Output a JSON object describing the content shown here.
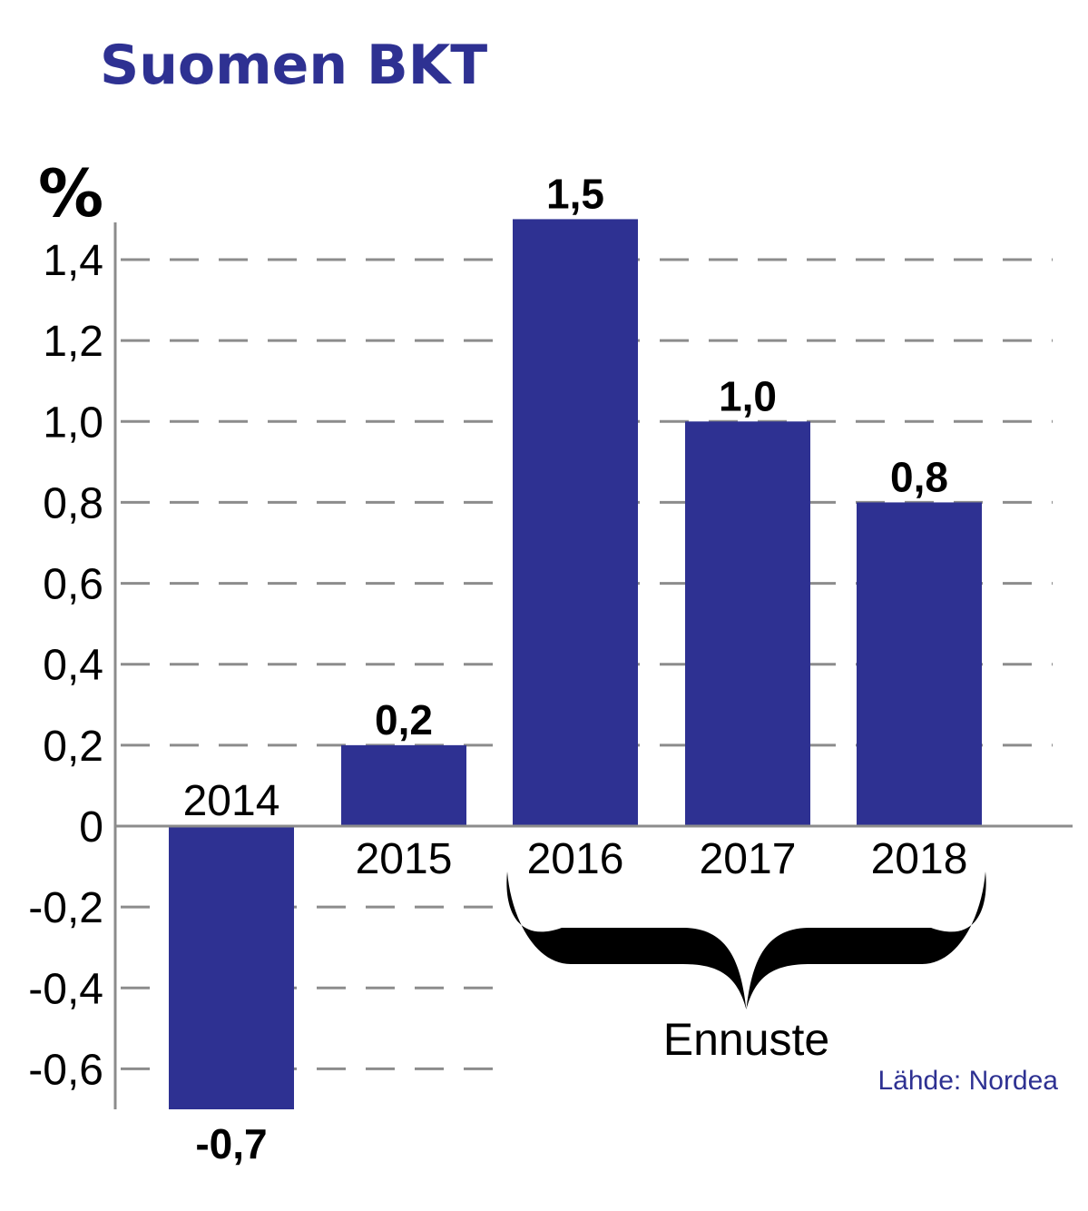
{
  "chart_data": {
    "type": "bar",
    "title": "Suomen BKT",
    "ylabel": "%",
    "categories": [
      "2014",
      "2015",
      "2016",
      "2017",
      "2018"
    ],
    "values": [
      -0.7,
      0.2,
      1.5,
      1.0,
      0.8
    ],
    "value_labels": [
      "-0,7",
      "0,2",
      "1,5",
      "1,0",
      "0,8"
    ],
    "ylim": [
      -0.7,
      1.5
    ],
    "yticks": [
      1.4,
      1.2,
      1.0,
      0.8,
      0.6,
      0.4,
      0.2,
      0,
      -0.2,
      -0.4,
      -0.6
    ],
    "ytick_labels": [
      "1,4",
      "1,2",
      "1,0",
      "0,8",
      "0,6",
      "0,4",
      "0,2",
      "0",
      "-0,2",
      "-0,4",
      "-0,6"
    ],
    "grid": true,
    "annotation": {
      "text": "Ennuste",
      "spans": [
        "2016",
        "2018"
      ]
    },
    "source": "Lähde: Nordea"
  },
  "colors": {
    "bar": "#2e3192",
    "title": "#2e3192",
    "source": "#2e3192",
    "grid": "#8c8c8c",
    "axis": "#8c8c8c",
    "text": "#000000"
  }
}
